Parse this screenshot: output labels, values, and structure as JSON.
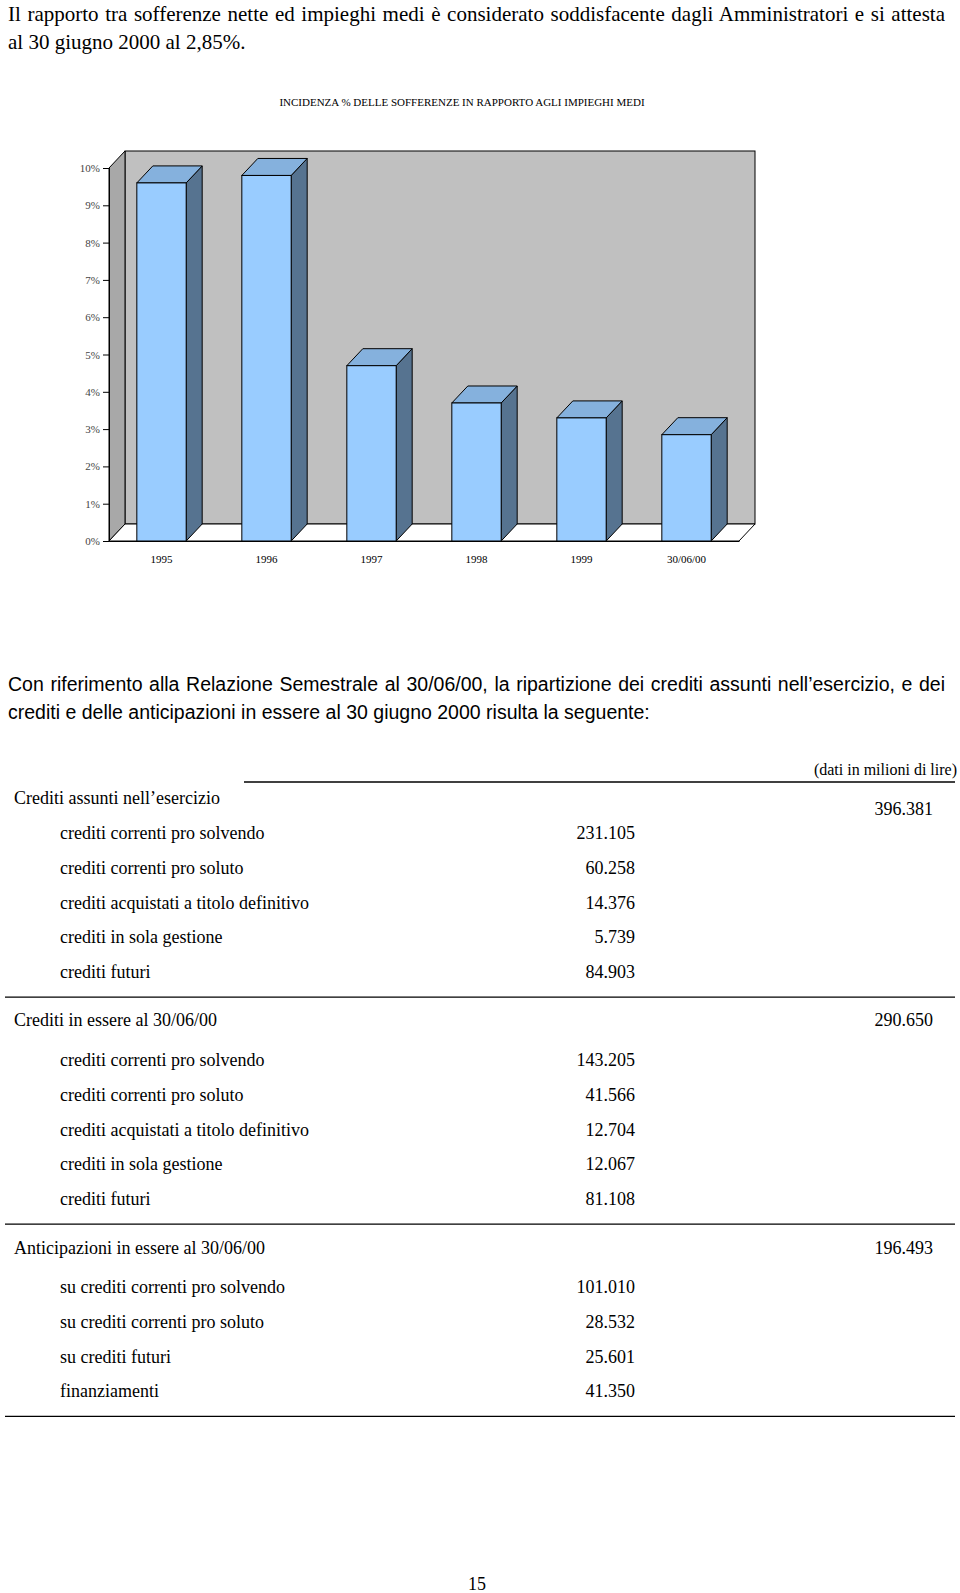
{
  "paragraph_1": "Il rapporto tra sofferenze nette ed impieghi medi è considerato soddisfacente dagli Amministratori e si attesta al 30 giugno 2000 al 2,85%.",
  "chart_data": {
    "type": "bar",
    "title": "INCIDENZA % DELLE SOFFERENZE IN RAPPORTO AGLI IMPIEGHI MEDI",
    "categories": [
      "1995",
      "1996",
      "1997",
      "1998",
      "1999",
      "30/06/00"
    ],
    "values": [
      9.6,
      9.8,
      4.7,
      3.7,
      3.3,
      2.85
    ],
    "color": "#99ccff",
    "ylim": [
      0,
      10
    ],
    "yticks": [
      {
        "value": 0,
        "label": "0%"
      },
      {
        "value": 1,
        "label": "1%"
      },
      {
        "value": 2,
        "label": "2%"
      },
      {
        "value": 3,
        "label": "3%"
      },
      {
        "value": 4,
        "label": "4%"
      },
      {
        "value": 5,
        "label": "5%"
      },
      {
        "value": 6,
        "label": "6%"
      },
      {
        "value": 7,
        "label": "7%"
      },
      {
        "value": 8,
        "label": "8%"
      },
      {
        "value": 9,
        "label": "9%"
      },
      {
        "value": 10,
        "label": "10%"
      }
    ],
    "grid": false
  },
  "paragraph_2": "Con riferimento alla Relazione Semestrale al 30/06/00, la ripartizione dei crediti assunti nell’esercizio, e dei crediti e delle anticipazioni in essere al 30 giugno 2000 risulta la seguente:",
  "table": {
    "unit_note": "(dati in milioni di lire)",
    "sections": [
      {
        "title": "Crediti assunti nell’esercizio",
        "total": "396.381",
        "rows": [
          [
            "crediti correnti pro solvendo",
            "231.105"
          ],
          [
            "crediti correnti pro soluto",
            "60.258"
          ],
          [
            "crediti acquistati a titolo definitivo",
            "14.376"
          ],
          [
            "crediti in sola gestione",
            "5.739"
          ],
          [
            "crediti futuri",
            "84.903"
          ]
        ]
      },
      {
        "title": "Crediti in essere al 30/06/00",
        "total": "290.650",
        "rows": [
          [
            "crediti correnti pro solvendo",
            "143.205"
          ],
          [
            "crediti correnti pro soluto",
            "41.566"
          ],
          [
            "crediti acquistati a titolo definitivo",
            "12.704"
          ],
          [
            "crediti in sola gestione",
            "12.067"
          ],
          [
            "crediti futuri",
            "81.108"
          ]
        ]
      },
      {
        "title": "Anticipazioni in essere al 30/06/00",
        "total": "196.493",
        "rows": [
          [
            "su crediti correnti pro solvendo",
            "101.010"
          ],
          [
            "su crediti correnti pro soluto",
            "28.532"
          ],
          [
            "su crediti futuri",
            "25.601"
          ],
          [
            "finanziamenti",
            "41.350"
          ]
        ]
      }
    ]
  },
  "page_number": "15"
}
